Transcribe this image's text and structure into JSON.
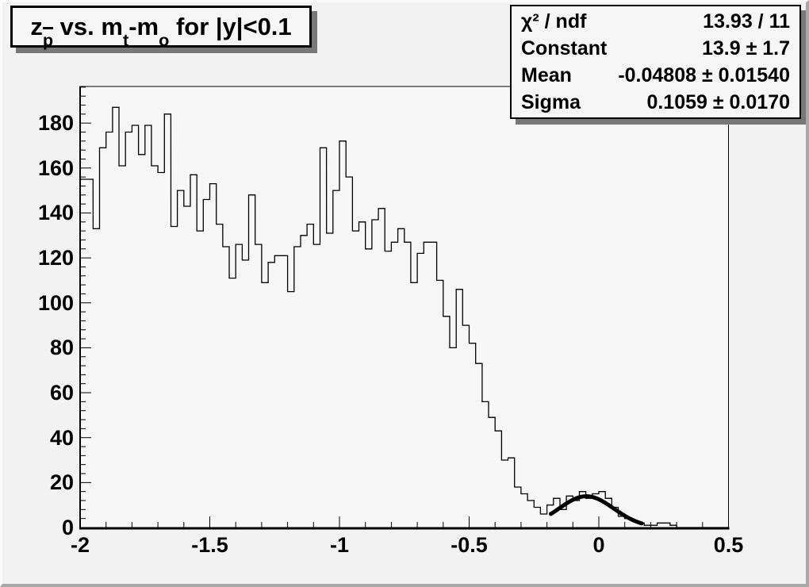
{
  "title": {
    "p1": "z",
    "p2": "p",
    "p3": " vs. m",
    "p4": "t",
    "p5": "-m",
    "p6": "o",
    "p7": " for |y|<0.1"
  },
  "stats": {
    "rows": [
      {
        "label": "χ² / ndf",
        "value": "13.93 / 11"
      },
      {
        "label": "Constant",
        "value": "13.9 ± 1.7"
      },
      {
        "label": "Mean",
        "value": "-0.04808 ± 0.01540"
      },
      {
        "label": "Sigma",
        "value": "0.1059 ± 0.0170"
      }
    ]
  },
  "chart_data": {
    "type": "bar",
    "subtype": "step-histogram",
    "title": "z_p vs. m_t-m_o for |y|<0.1",
    "xlabel": "",
    "ylabel": "",
    "xlim": [
      -2,
      0.5
    ],
    "ylim": [
      0,
      196.3
    ],
    "grid": false,
    "legend": "none",
    "bin_start": -2,
    "bin_width": 0.025,
    "values": [
      155,
      155,
      133,
      169,
      176,
      187,
      161,
      176,
      179,
      166,
      179,
      161,
      158,
      184,
      134,
      150,
      143,
      157,
      132,
      146,
      153,
      135,
      125,
      111,
      126,
      119,
      148,
      126,
      109,
      118,
      121,
      121,
      105,
      125,
      130,
      135,
      126,
      169,
      131,
      150,
      172,
      156,
      132,
      136,
      124,
      137,
      142,
      123,
      127,
      133,
      127,
      109,
      122,
      127,
      127,
      110,
      94,
      80,
      106,
      90,
      82,
      73,
      56,
      49,
      43,
      30,
      31,
      18,
      15,
      12,
      9,
      6,
      10,
      13,
      8,
      14,
      12,
      16,
      13,
      15,
      16,
      13,
      9,
      5,
      4,
      3,
      2,
      1,
      1,
      2,
      2,
      1,
      0,
      0,
      0,
      0,
      0,
      0,
      0,
      0
    ],
    "x_ticks": {
      "major_values": [
        -2,
        -1.5,
        -1,
        -0.5,
        0,
        0.5
      ],
      "labels": [
        "-2",
        "-1.5",
        "-1",
        "-0.5",
        "0",
        "0.5"
      ],
      "minor_step": 0.1
    },
    "y_ticks": {
      "major_values": [
        0,
        20,
        40,
        60,
        80,
        100,
        120,
        140,
        160,
        180
      ],
      "labels": [
        "0",
        "20",
        "40",
        "60",
        "80",
        "100",
        "120",
        "140",
        "160",
        "180"
      ],
      "minor_step": 4
    },
    "fit_curve": {
      "type": "gaussian",
      "constant": 13.9,
      "mean": -0.04808,
      "sigma": 0.1059,
      "draw_range": [
        -0.185,
        0.165
      ]
    },
    "colors": {
      "line": "#000000",
      "frame_fill": "#f7f7f7",
      "canvas_fill": "#f2f2f2",
      "pave_shadow": "#787878"
    }
  }
}
